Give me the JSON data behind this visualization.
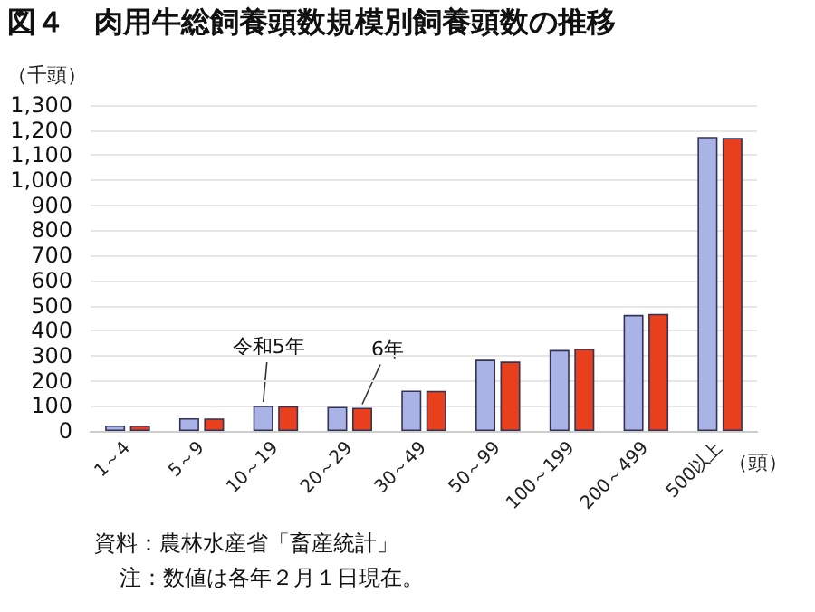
{
  "chart_data": {
    "type": "bar",
    "title": "図４　肉用牛総飼養頭数規模別飼養頭数の推移",
    "ylabel": "（千頭）",
    "xlabel": "（頭）",
    "categories": [
      "1～4",
      "5～9",
      "10～19",
      "20～29",
      "30～49",
      "50～99",
      "100～199",
      "200～499",
      "500以上"
    ],
    "series": [
      {
        "color": "#aab3e6",
        "values": [
          22,
          51,
          101,
          96,
          161,
          284,
          323,
          463,
          1173
        ]
      },
      {
        "color": "#e8401c",
        "values": [
          22,
          50,
          99,
          92,
          160,
          277,
          328,
          467,
          1169
        ]
      }
    ],
    "ylim": [
      0,
      1300
    ],
    "yticks": [
      0,
      100,
      200,
      300,
      400,
      500,
      600,
      700,
      800,
      900,
      {
        "value": 1000,
        "label": "1,000"
      },
      {
        "value": 1100,
        "label": "1,100"
      },
      {
        "value": 1200,
        "label": "1,200"
      },
      {
        "value": 1300,
        "label": "1,300"
      }
    ],
    "grid": "y",
    "annotations": [
      {
        "text": "令和5年",
        "x": "10～19",
        "y": 101
      },
      {
        "text": "6年",
        "x": "20～29",
        "y": 92
      },
      "資料：農林水産省「畜産統計」",
      "注：数値は各年２月１日現在。"
    ]
  }
}
